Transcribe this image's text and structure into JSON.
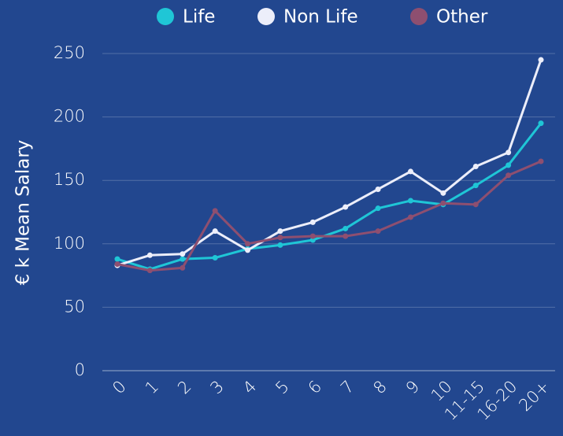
{
  "chart_data": {
    "type": "line",
    "y_label": "€ k Mean Salary",
    "categories": [
      "0",
      "1",
      "2",
      "3",
      "4",
      "5",
      "6",
      "7",
      "8",
      "9",
      "10",
      "11-15",
      "16-20",
      "20+"
    ],
    "series": [
      {
        "name": "Life",
        "color": "#1fc6d6",
        "values": [
          88,
          80,
          88,
          89,
          96,
          99,
          103,
          112,
          128,
          134,
          131,
          146,
          162,
          195
        ]
      },
      {
        "name": "Non Life",
        "color": "#eceefa",
        "values": [
          83,
          91,
          92,
          110,
          95,
          110,
          117,
          129,
          143,
          157,
          140,
          161,
          172,
          245
        ]
      },
      {
        "name": "Other",
        "color": "#8e4f70",
        "values": [
          84,
          79,
          81,
          126,
          100,
          105,
          106,
          106,
          110,
          121,
          132,
          131,
          154,
          165
        ]
      }
    ],
    "ylim": [
      0,
      250
    ],
    "yticks": [
      0,
      50,
      100,
      150,
      200,
      250
    ],
    "grid": true,
    "legend": "top"
  }
}
